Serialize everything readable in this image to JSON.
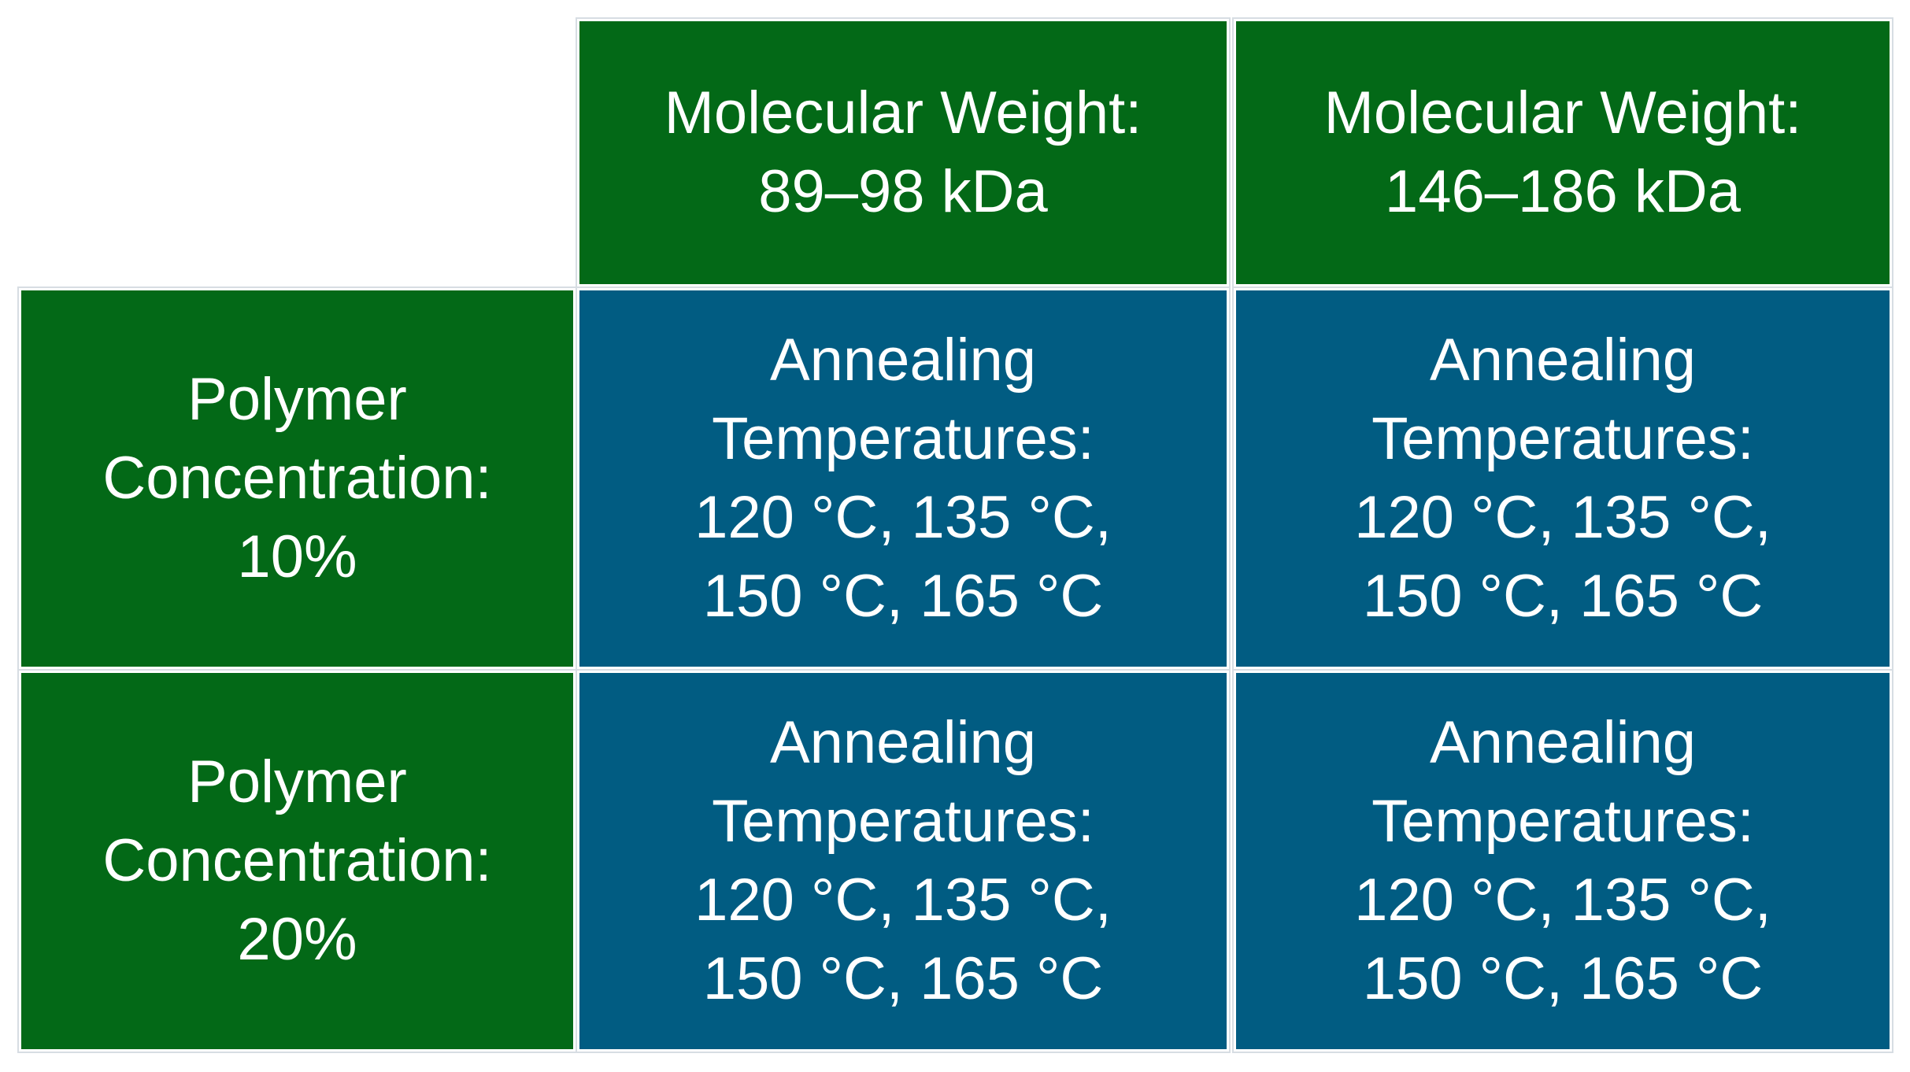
{
  "colors": {
    "header_bg": "#036917",
    "cell_bg": "#015c82",
    "text": "#ffffff",
    "grid_line": "#ffffff"
  },
  "columns": [
    {
      "label": "Molecular Weight:\n89–98 kDa"
    },
    {
      "label": "Molecular Weight:\n146–186 kDa"
    }
  ],
  "rows": [
    {
      "label": "Polymer\nConcentration:\n10%",
      "cells": [
        "Annealing\nTemperatures:\n120 °C, 135 °C,\n150 °C, 165 °C",
        "Annealing\nTemperatures:\n120 °C, 135 °C,\n150 °C, 165 °C"
      ]
    },
    {
      "label": "Polymer\nConcentration:\n20%",
      "cells": [
        "Annealing\nTemperatures:\n120 °C, 135 °C,\n150 °C, 165 °C",
        "Annealing\nTemperatures:\n120 °C, 135 °C,\n150 °C, 165 °C"
      ]
    }
  ]
}
